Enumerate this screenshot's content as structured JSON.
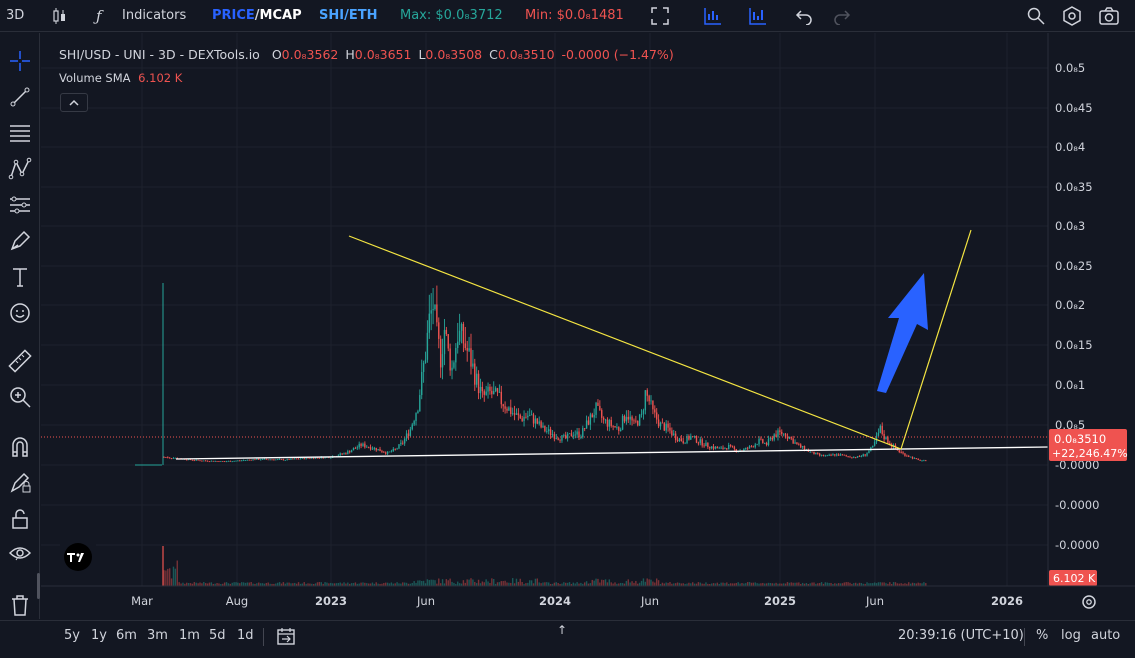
{
  "topbar": {
    "layout_label": "3D",
    "indicators_label": "Indicators",
    "price_label": "PRICE",
    "sep": "/",
    "mcap_label": "MCAP",
    "pair_label": "SHI/ETH",
    "max_label": "Max: $0.0₈3712",
    "min_label": "Min: $0.0₈1481",
    "colors": {
      "price": "#2962ff",
      "max": "#26a69a",
      "min": "#ef5350"
    }
  },
  "legend": {
    "symbol": "SHI/USD - UNI - 3D - DEXTools.io",
    "o_label": "O",
    "o_value": "0.0₈3562",
    "h_label": "H",
    "h_value": "0.0₈3651",
    "l_label": "L",
    "l_value": "0.0₈3508",
    "c_label": "C",
    "c_value": "0.0₈3510",
    "change": "-0.0000 (−1.47%)",
    "volume_label": "Volume SMA",
    "volume_value": "6.102 K"
  },
  "left_toolbar": {
    "icons": [
      "crosshair-icon",
      "trend-line-icon",
      "fib-retracement-icon",
      "pattern-icon",
      "prediction-icon",
      "brush-icon",
      "text-icon",
      "emoji-icon",
      "ruler-icon",
      "zoom-in-icon",
      "magnet-icon",
      "lock-drawing-icon",
      "lock-icon",
      "eye-icon",
      "trash-icon"
    ]
  },
  "bottombar": {
    "ranges": [
      "5y",
      "1y",
      "6m",
      "3m",
      "1m",
      "5d",
      "1d"
    ],
    "time": "20:39:16 (UTC+10)",
    "percent_label": "%",
    "log_label": "log",
    "auto_label": "auto"
  },
  "chart_data": {
    "type": "candlestick",
    "x_ticks": [
      "Mar",
      "Aug",
      "2023",
      "Jun",
      "2024",
      "Jun",
      "2025",
      "Jun",
      "2026"
    ],
    "y_ticks": [
      "0.0₈5",
      "0.0₈45",
      "0.0₈4",
      "0.0₈35",
      "0.0₈3",
      "0.0₈25",
      "0.0₈2",
      "0.0₈15",
      "0.0₈1",
      "0.0₈5",
      "-0.0000",
      "-0.0000",
      "-0.0000"
    ],
    "last_price_label": "0.0₈3510",
    "last_change_label": "+22,246.47%",
    "volume_label": "6.102 K",
    "colors": {
      "up": "#26a69a",
      "down": "#ef5350",
      "trendline": "#f4e542",
      "support": "#ffffff",
      "arrow": "#2962ff"
    },
    "series_price": [
      [
        0,
        1.0
      ],
      [
        8,
        0.8
      ],
      [
        16,
        0.6
      ],
      [
        24,
        0.5
      ],
      [
        32,
        0.45
      ],
      [
        40,
        0.55
      ],
      [
        48,
        0.7
      ],
      [
        56,
        0.7
      ],
      [
        64,
        0.65
      ],
      [
        72,
        0.8
      ],
      [
        80,
        0.9
      ],
      [
        88,
        1.0
      ],
      [
        96,
        1.5
      ],
      [
        104,
        2.5
      ],
      [
        108,
        2.3
      ],
      [
        112,
        2.0
      ],
      [
        118,
        1.5
      ],
      [
        122,
        1.9
      ],
      [
        126,
        2.8
      ],
      [
        130,
        4.5
      ],
      [
        134,
        7.5
      ],
      [
        138,
        14.0
      ],
      [
        140,
        18.0
      ],
      [
        142,
        20.0
      ],
      [
        144,
        16.0
      ],
      [
        146,
        13.5
      ],
      [
        148,
        17.0
      ],
      [
        150,
        14.0
      ],
      [
        152,
        12.0
      ],
      [
        155,
        16.5
      ],
      [
        158,
        15.5
      ],
      [
        162,
        13.0
      ],
      [
        165,
        10.5
      ],
      [
        168,
        8.5
      ],
      [
        172,
        9.0
      ],
      [
        176,
        8.5
      ],
      [
        180,
        7.5
      ],
      [
        184,
        6.5
      ],
      [
        188,
        5.8
      ],
      [
        192,
        6.2
      ],
      [
        196,
        5.5
      ],
      [
        200,
        4.5
      ],
      [
        204,
        4.0
      ],
      [
        208,
        3.5
      ],
      [
        212,
        3.3
      ],
      [
        216,
        4.0
      ],
      [
        220,
        3.8
      ],
      [
        224,
        5.5
      ],
      [
        228,
        7.0
      ],
      [
        232,
        5.5
      ],
      [
        236,
        5.0
      ],
      [
        240,
        4.5
      ],
      [
        244,
        6.5
      ],
      [
        248,
        5.0
      ],
      [
        252,
        6.0
      ],
      [
        254,
        9.0
      ],
      [
        256,
        8.0
      ],
      [
        258,
        6.5
      ],
      [
        262,
        5.0
      ],
      [
        266,
        4.5
      ],
      [
        270,
        3.5
      ],
      [
        274,
        3.0
      ],
      [
        278,
        3.5
      ],
      [
        282,
        3.0
      ],
      [
        286,
        2.5
      ],
      [
        290,
        2.2
      ],
      [
        294,
        2.0
      ],
      [
        298,
        2.3
      ],
      [
        302,
        1.8
      ],
      [
        306,
        1.9
      ],
      [
        310,
        2.3
      ],
      [
        314,
        3.0
      ],
      [
        318,
        2.6
      ],
      [
        322,
        3.8
      ],
      [
        326,
        4.0
      ],
      [
        330,
        3.5
      ],
      [
        334,
        2.5
      ],
      [
        338,
        2.0
      ],
      [
        342,
        1.5
      ],
      [
        346,
        1.2
      ],
      [
        350,
        1.1
      ],
      [
        354,
        1.3
      ],
      [
        358,
        1.2
      ],
      [
        362,
        1.0
      ],
      [
        366,
        1.0
      ],
      [
        370,
        1.3
      ],
      [
        374,
        2.2
      ],
      [
        378,
        4.5
      ],
      [
        380,
        3.5
      ],
      [
        382,
        3.0
      ],
      [
        384,
        2.5
      ],
      [
        386,
        2.0
      ],
      [
        388,
        1.7
      ],
      [
        390,
        1.4
      ],
      [
        392,
        1.2
      ],
      [
        394,
        1.0
      ],
      [
        396,
        0.8
      ],
      [
        398,
        0.6
      ],
      [
        400,
        0.55
      ],
      [
        402,
        0.5
      ]
    ]
  }
}
